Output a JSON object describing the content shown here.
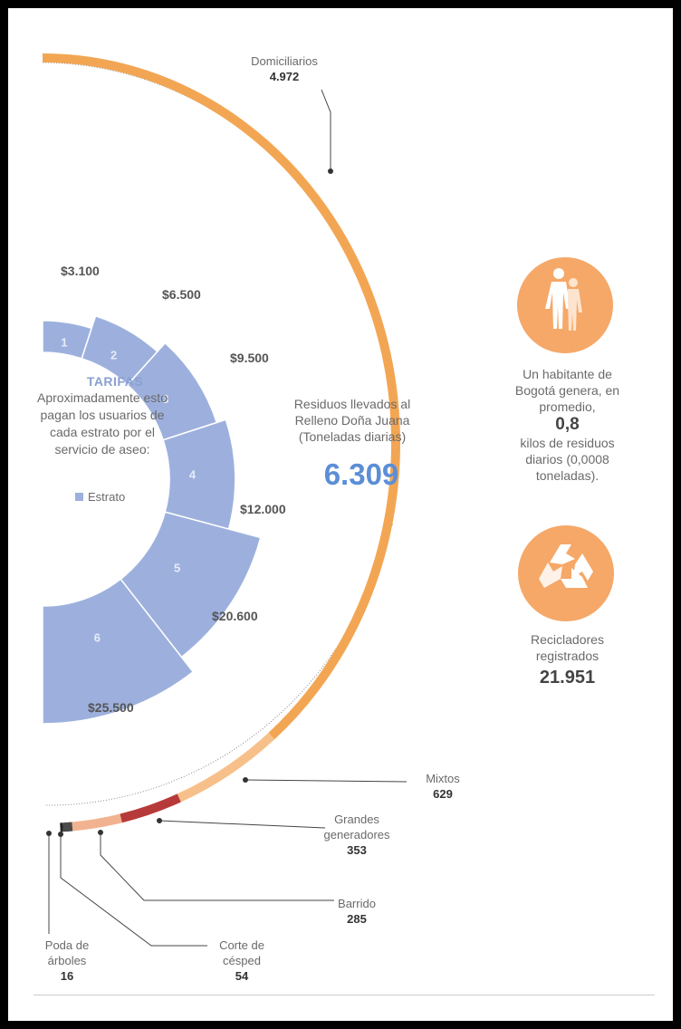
{
  "chart_data": [
    {
      "type": "pie",
      "subtitle": "Residuos llevados al Relleno Doña Juana (Toneladas diarias)",
      "total_label": "6.309",
      "total": 6309,
      "categories": [
        "Domiciliarios",
        "Mixtos",
        "Grandes generadores",
        "Barrido",
        "Corte de césped",
        "Poda de árboles"
      ],
      "values": [
        4972,
        629,
        353,
        285,
        54,
        16
      ],
      "value_labels": [
        "4.972",
        "629",
        "353",
        "285",
        "54",
        "16"
      ],
      "colors": [
        "#f2a654",
        "#f7c08a",
        "#b73a3a",
        "#f1b38f",
        "#4a4a4a",
        "#222222"
      ]
    },
    {
      "type": "bar",
      "title": "TARIFAS",
      "subtitle": "Aproximadamente esto pagan los usuarios de cada estrato por el servicio de aseo:",
      "legend": "Estrato",
      "categories": [
        "1",
        "2",
        "3",
        "4",
        "5",
        "6"
      ],
      "values": [
        3100,
        6500,
        9500,
        12000,
        20600,
        25500
      ],
      "value_labels": [
        "$3.100",
        "$6.500",
        "$9.500",
        "$12.000",
        "$20.600",
        "$25.500"
      ],
      "color": "#9db0dd"
    }
  ],
  "facts": {
    "habitante_text_1": "Un habitante de Bogotá genera, en promedio,",
    "habitante_value": "0,8",
    "habitante_text_2": "kilos de residuos diarios (0,0008 toneladas).",
    "recicladores_text": "Recicladores registrados",
    "recicladores_value": "21.951",
    "icon_person": "person-icon",
    "icon_recycle": "recycle-icon",
    "icon_color": "#f5a868"
  }
}
